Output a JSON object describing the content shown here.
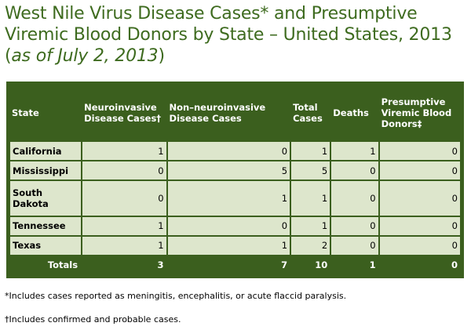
{
  "title": {
    "line1": "West Nile Virus Disease Cases* and Presumptive",
    "line2": "Viremic Blood Donors by State – United States, 2013",
    "line3_open": "(",
    "line3_italic": "as of July 2, 2013",
    "line3_close": ")"
  },
  "table": {
    "headers": [
      "State",
      "Neuroinvasive Disease Cases†",
      "Non–neuroinvasive Disease Cases",
      "Total Cases",
      "Deaths",
      "Presumptive Viremic Blood Donors‡"
    ],
    "rows": [
      [
        "California",
        "1",
        "0",
        "1",
        "1",
        "0"
      ],
      [
        "Mississippi",
        "0",
        "5",
        "5",
        "0",
        "0"
      ],
      [
        "South Dakota",
        "0",
        "1",
        "1",
        "0",
        "0"
      ],
      [
        "Tennessee",
        "1",
        "0",
        "1",
        "0",
        "0"
      ],
      [
        "Texas",
        "1",
        "1",
        "2",
        "0",
        "0"
      ]
    ],
    "totals": [
      "Totals",
      "3",
      "7",
      "10",
      "1",
      "0"
    ]
  },
  "footnotes": {
    "asterisk": "*Includes cases reported as meningitis, encephalitis, or acute flaccid paralysis.",
    "dagger": "†Includes confirmed and probable cases."
  },
  "colors": {
    "title_green": "#3e6b1f",
    "header_green": "#3b5f1e",
    "cell_bg": "#dde6cc"
  }
}
